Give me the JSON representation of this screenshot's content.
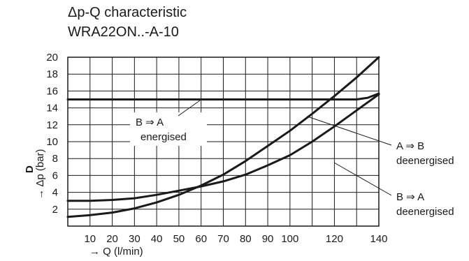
{
  "chart_data": {
    "type": "line",
    "title": "Δp-Q characteristic",
    "subtitle": "WRA22ON..-A-10",
    "xlabel": "→ Q (l/min)",
    "ylabel": "→ Δp (bar)",
    "ylabel_letter": "D",
    "xlim": [
      0,
      140
    ],
    "ylim": [
      0,
      20
    ],
    "x_ticks": [
      10,
      20,
      30,
      40,
      50,
      60,
      70,
      80,
      90,
      100,
      120,
      140
    ],
    "y_ticks": [
      2,
      4,
      6,
      8,
      10,
      12,
      14,
      16,
      18,
      20
    ],
    "grid": true,
    "series": [
      {
        "name": "B ⇒ A energised",
        "x": [
          0,
          20,
          40,
          60,
          80,
          100,
          120,
          130,
          135,
          140
        ],
        "y": [
          15,
          15,
          15,
          15,
          15,
          15,
          15,
          15,
          15.2,
          15.7
        ]
      },
      {
        "name": "A ⇒ B deenergised",
        "x": [
          0,
          10,
          20,
          30,
          40,
          50,
          60,
          70,
          80,
          90,
          100,
          110,
          120,
          130,
          140
        ],
        "y": [
          1.1,
          1.3,
          1.6,
          2.1,
          2.8,
          3.7,
          4.8,
          6.1,
          7.7,
          9.5,
          11.3,
          13.3,
          15.4,
          17.6,
          20.0
        ]
      },
      {
        "name": "B ⇒ A deenergised",
        "x": [
          0,
          10,
          20,
          30,
          40,
          50,
          60,
          70,
          80,
          90,
          100,
          110,
          120,
          130,
          140
        ],
        "y": [
          3.0,
          3.0,
          3.1,
          3.3,
          3.7,
          4.2,
          4.7,
          5.3,
          6.1,
          7.2,
          8.4,
          10.0,
          11.8,
          13.7,
          15.6
        ]
      }
    ],
    "annotations": [
      {
        "lines": [
          "B ⇒ A",
          "energised"
        ],
        "series": 0
      },
      {
        "lines": [
          "A ⇒ B",
          "deenergised"
        ],
        "series": 1
      },
      {
        "lines": [
          "B ⇒ A",
          "deenergised"
        ],
        "series": 2
      }
    ]
  }
}
